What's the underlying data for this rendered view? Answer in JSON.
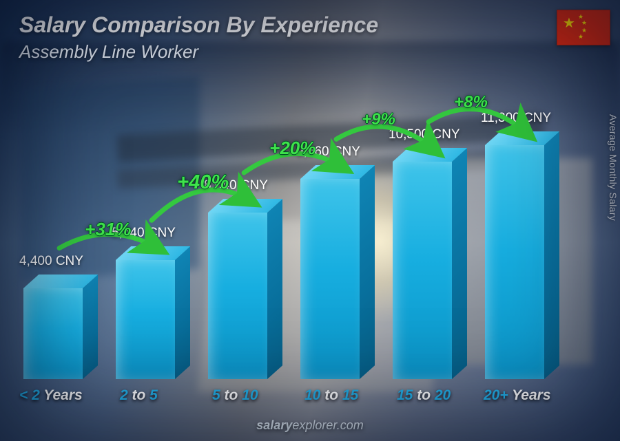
{
  "header": {
    "title": "Salary Comparison By Experience",
    "subtitle": "Assembly Line Worker",
    "title_fontsize": 32,
    "subtitle_fontsize": 26,
    "title_color": "#ffffff",
    "subtitle_color": "#e8eef6"
  },
  "flag": {
    "country": "China",
    "bg": "#de2910",
    "star": "#ffde00"
  },
  "y_axis_label": "Average Monthly Salary",
  "footer": {
    "brand_bold": "salary",
    "brand_rest": "explorer.com"
  },
  "chart": {
    "type": "bar-3d",
    "currency": "CNY",
    "bar_front_width": 86,
    "bar_depth": 22,
    "bar_top_h": 20,
    "col_spacing": 134,
    "first_left": 0,
    "max_value": 11300,
    "max_bar_height": 340,
    "bar_colors": {
      "front_top": "#3fc4ea",
      "front_bot": "#0a93c6",
      "side_top": "#0f84b4",
      "side_bot": "#065f86",
      "top_l": "#6fd6f4",
      "top_r": "#2fb8e4"
    },
    "value_label_color": "#ffffff",
    "value_label_fontsize": 19,
    "category_color": "#23b2ea",
    "category_keyword_color": "#ffffff",
    "category_fontsize": 21,
    "increase_color": "#3fe24b",
    "bars": [
      {
        "category_pre": "< 2 ",
        "category_kw": "Years",
        "category_post": "",
        "value": 4400,
        "value_label": "4,400 CNY"
      },
      {
        "category_pre": "2 ",
        "category_kw": "to",
        "category_post": " 5",
        "value": 5740,
        "value_label": "5,740 CNY"
      },
      {
        "category_pre": "5 ",
        "category_kw": "to",
        "category_post": " 10",
        "value": 8040,
        "value_label": "8,040 CNY"
      },
      {
        "category_pre": "10 ",
        "category_kw": "to",
        "category_post": " 15",
        "value": 9660,
        "value_label": "9,660 CNY"
      },
      {
        "category_pre": "15 ",
        "category_kw": "to",
        "category_post": " 20",
        "value": 10500,
        "value_label": "10,500 CNY"
      },
      {
        "category_pre": "20+ ",
        "category_kw": "Years",
        "category_post": "",
        "value": 11300,
        "value_label": "11,300 CNY"
      }
    ],
    "increases": [
      {
        "label": "+31%",
        "fontsize": 26
      },
      {
        "label": "+40%",
        "fontsize": 29
      },
      {
        "label": "+20%",
        "fontsize": 26
      },
      {
        "label": "+9%",
        "fontsize": 24
      },
      {
        "label": "+8%",
        "fontsize": 24
      }
    ],
    "arrow": {
      "stroke": "#34c93f",
      "stroke_width": 7,
      "head": "#2fbf39"
    }
  }
}
